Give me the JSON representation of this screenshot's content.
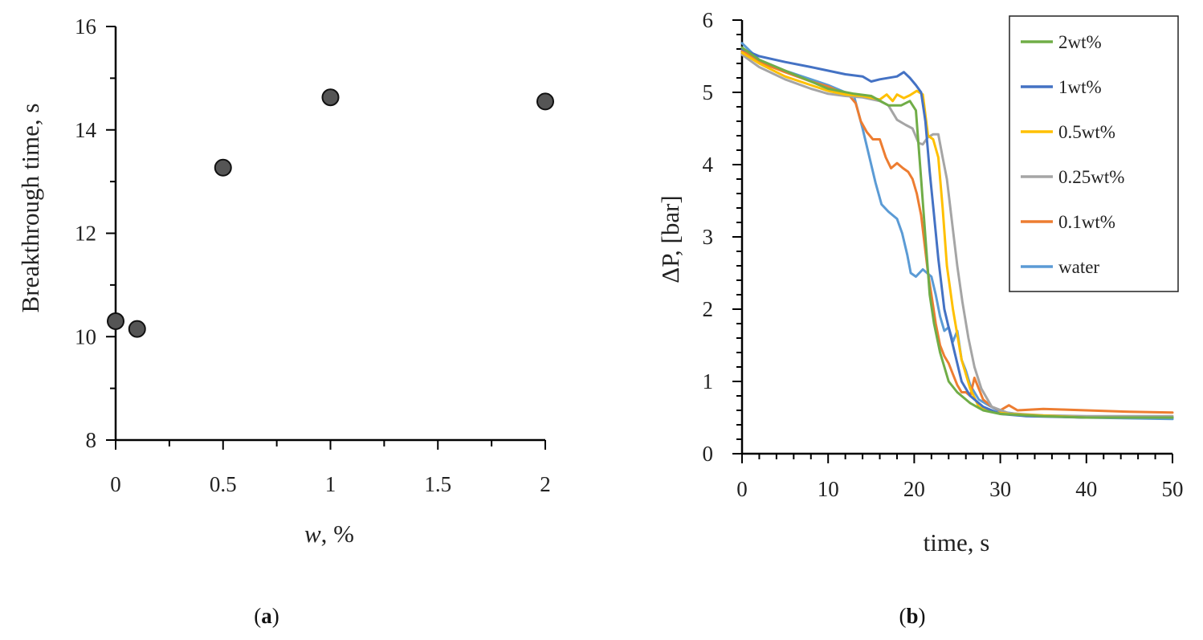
{
  "chart_data": [
    {
      "type": "scatter",
      "panel_label_open": "(",
      "panel_label_letter": "a",
      "panel_label_close": ")",
      "xlabel_var": "w",
      "xlabel_rest": ", %",
      "ylabel": "Breakthrough  time, s",
      "xlim": [
        0,
        2
      ],
      "ylim": [
        8,
        16
      ],
      "xticks": [
        0,
        0.5,
        1,
        1.5,
        2
      ],
      "xtick_labels": [
        "0",
        "0.5",
        "1",
        "1.5",
        "2"
      ],
      "yticks": [
        8,
        10,
        12,
        14,
        16
      ],
      "ytick_labels": [
        "8",
        "10",
        "12",
        "14",
        "16"
      ],
      "grid": false,
      "marker_color": "#555555",
      "points": [
        {
          "x": 0,
          "y": 10.3
        },
        {
          "x": 0.1,
          "y": 10.15
        },
        {
          "x": 0.5,
          "y": 13.27
        },
        {
          "x": 1,
          "y": 14.63
        },
        {
          "x": 2,
          "y": 14.55
        }
      ]
    },
    {
      "type": "line",
      "panel_label_open": "(",
      "panel_label_letter": "b",
      "panel_label_close": ")",
      "xlabel": "time, s",
      "ylabel": "ΔP, [bar]",
      "xlim": [
        0,
        50
      ],
      "ylim": [
        0,
        6
      ],
      "xticks": [
        0,
        10,
        20,
        30,
        40,
        50
      ],
      "xtick_labels": [
        "0",
        "10",
        "20",
        "30",
        "40",
        "50"
      ],
      "yticks": [
        0,
        1,
        2,
        3,
        4,
        5,
        6
      ],
      "ytick_labels": [
        "0",
        "1",
        "2",
        "3",
        "4",
        "5",
        "6"
      ],
      "grid": false,
      "legend_position": "top-right",
      "series": [
        {
          "name": "2wt%",
          "color": "#70AD47",
          "points": [
            [
              0,
              5.62
            ],
            [
              2,
              5.45
            ],
            [
              5,
              5.3
            ],
            [
              8,
              5.15
            ],
            [
              10,
              5.05
            ],
            [
              13,
              4.98
            ],
            [
              15,
              4.95
            ],
            [
              17,
              4.82
            ],
            [
              18.5,
              4.82
            ],
            [
              19.5,
              4.88
            ],
            [
              20.2,
              4.75
            ],
            [
              20.8,
              3.8
            ],
            [
              21.3,
              3.0
            ],
            [
              21.8,
              2.2
            ],
            [
              22.3,
              1.8
            ],
            [
              23,
              1.4
            ],
            [
              24,
              1.0
            ],
            [
              25,
              0.85
            ],
            [
              26.5,
              0.7
            ],
            [
              28,
              0.6
            ],
            [
              30,
              0.55
            ],
            [
              35,
              0.52
            ],
            [
              40,
              0.5
            ],
            [
              50,
              0.5
            ]
          ]
        },
        {
          "name": "1wt%",
          "color": "#4472C4",
          "points": [
            [
              0,
              5.6
            ],
            [
              2,
              5.5
            ],
            [
              5,
              5.42
            ],
            [
              8,
              5.35
            ],
            [
              10,
              5.3
            ],
            [
              12,
              5.25
            ],
            [
              14,
              5.22
            ],
            [
              15,
              5.15
            ],
            [
              16,
              5.18
            ],
            [
              18,
              5.22
            ],
            [
              18.8,
              5.28
            ],
            [
              19.5,
              5.2
            ],
            [
              20.2,
              5.1
            ],
            [
              20.8,
              5.0
            ],
            [
              21.3,
              4.6
            ],
            [
              21.8,
              3.9
            ],
            [
              22.3,
              3.3
            ],
            [
              22.8,
              2.7
            ],
            [
              23.5,
              2.0
            ],
            [
              24.5,
              1.5
            ],
            [
              25.5,
              1.0
            ],
            [
              26.5,
              0.8
            ],
            [
              28,
              0.65
            ],
            [
              30,
              0.55
            ],
            [
              33,
              0.52
            ],
            [
              40,
              0.5
            ],
            [
              50,
              0.5
            ]
          ]
        },
        {
          "name": "0.5wt%",
          "color": "#FFC000",
          "points": [
            [
              0,
              5.55
            ],
            [
              2,
              5.4
            ],
            [
              5,
              5.22
            ],
            [
              8,
              5.1
            ],
            [
              10,
              5.02
            ],
            [
              12,
              4.97
            ],
            [
              14,
              4.95
            ],
            [
              16,
              4.9
            ],
            [
              16.8,
              4.97
            ],
            [
              17.5,
              4.88
            ],
            [
              18,
              4.97
            ],
            [
              18.8,
              4.92
            ],
            [
              19.5,
              4.96
            ],
            [
              20.3,
              5.02
            ],
            [
              21,
              4.97
            ],
            [
              21.6,
              4.4
            ],
            [
              22.2,
              4.35
            ],
            [
              22.8,
              4.1
            ],
            [
              23.3,
              3.4
            ],
            [
              23.8,
              2.6
            ],
            [
              24.5,
              2.0
            ],
            [
              25.5,
              1.3
            ],
            [
              26.5,
              0.9
            ],
            [
              27.5,
              0.65
            ],
            [
              29,
              0.58
            ],
            [
              31,
              0.55
            ],
            [
              40,
              0.5
            ],
            [
              50,
              0.5
            ]
          ]
        },
        {
          "name": "0.25wt%",
          "color": "#A5A5A5",
          "points": [
            [
              0,
              5.52
            ],
            [
              2,
              5.35
            ],
            [
              5,
              5.18
            ],
            [
              8,
              5.05
            ],
            [
              10,
              4.98
            ],
            [
              12,
              4.95
            ],
            [
              14,
              4.93
            ],
            [
              16,
              4.88
            ],
            [
              17,
              4.82
            ],
            [
              18,
              4.62
            ],
            [
              19,
              4.55
            ],
            [
              19.8,
              4.5
            ],
            [
              20.5,
              4.3
            ],
            [
              21,
              4.28
            ],
            [
              21.6,
              4.38
            ],
            [
              22.2,
              4.42
            ],
            [
              22.8,
              4.42
            ],
            [
              23.3,
              4.1
            ],
            [
              23.8,
              3.8
            ],
            [
              24.5,
              3.1
            ],
            [
              25,
              2.6
            ],
            [
              25.6,
              2.1
            ],
            [
              26.3,
              1.6
            ],
            [
              27,
              1.2
            ],
            [
              27.8,
              0.9
            ],
            [
              29,
              0.65
            ],
            [
              31,
              0.56
            ],
            [
              35,
              0.53
            ],
            [
              40,
              0.52
            ],
            [
              50,
              0.52
            ]
          ]
        },
        {
          "name": "0.1wt%",
          "color": "#ED7D31",
          "points": [
            [
              0,
              5.58
            ],
            [
              2,
              5.42
            ],
            [
              5,
              5.28
            ],
            [
              8,
              5.15
            ],
            [
              10,
              5.08
            ],
            [
              11.5,
              5.0
            ],
            [
              12.5,
              4.95
            ],
            [
              13.2,
              4.85
            ],
            [
              13.8,
              4.6
            ],
            [
              14.5,
              4.45
            ],
            [
              15.2,
              4.35
            ],
            [
              16,
              4.35
            ],
            [
              16.7,
              4.1
            ],
            [
              17.3,
              3.95
            ],
            [
              18,
              4.02
            ],
            [
              18.7,
              3.95
            ],
            [
              19.3,
              3.9
            ],
            [
              19.8,
              3.8
            ],
            [
              20.3,
              3.6
            ],
            [
              20.8,
              3.3
            ],
            [
              21.2,
              2.9
            ],
            [
              21.6,
              2.5
            ],
            [
              22,
              2.2
            ],
            [
              22.5,
              1.8
            ],
            [
              23,
              1.5
            ],
            [
              23.5,
              1.35
            ],
            [
              24,
              1.25
            ],
            [
              24.5,
              1.1
            ],
            [
              25,
              0.95
            ],
            [
              25.5,
              0.85
            ],
            [
              26,
              0.85
            ],
            [
              26.5,
              0.8
            ],
            [
              27,
              1.05
            ],
            [
              27.5,
              0.9
            ],
            [
              28,
              0.75
            ],
            [
              29,
              0.65
            ],
            [
              30,
              0.6
            ],
            [
              31,
              0.67
            ],
            [
              32,
              0.6
            ],
            [
              35,
              0.62
            ],
            [
              40,
              0.6
            ],
            [
              45,
              0.58
            ],
            [
              50,
              0.57
            ]
          ]
        },
        {
          "name": "water",
          "color": "#5B9BD5",
          "points": [
            [
              0,
              5.68
            ],
            [
              2,
              5.45
            ],
            [
              5,
              5.3
            ],
            [
              8,
              5.18
            ],
            [
              10,
              5.1
            ],
            [
              11,
              5.05
            ],
            [
              12,
              5.0
            ],
            [
              13,
              4.95
            ],
            [
              14,
              4.5
            ],
            [
              14.8,
              4.1
            ],
            [
              15.5,
              3.75
            ],
            [
              16.2,
              3.45
            ],
            [
              17,
              3.35
            ],
            [
              18,
              3.25
            ],
            [
              18.6,
              3.05
            ],
            [
              19.2,
              2.75
            ],
            [
              19.6,
              2.5
            ],
            [
              20.2,
              2.45
            ],
            [
              21,
              2.55
            ],
            [
              22,
              2.45
            ],
            [
              22.5,
              2.2
            ],
            [
              23,
              1.9
            ],
            [
              23.5,
              1.7
            ],
            [
              24,
              1.75
            ],
            [
              24.5,
              1.55
            ],
            [
              25,
              1.7
            ],
            [
              25.5,
              1.3
            ],
            [
              26,
              1.15
            ],
            [
              26.5,
              0.95
            ],
            [
              27,
              0.85
            ],
            [
              27.5,
              0.75
            ],
            [
              28.5,
              0.68
            ],
            [
              30,
              0.58
            ],
            [
              32,
              0.55
            ],
            [
              35,
              0.52
            ],
            [
              40,
              0.5
            ],
            [
              50,
              0.48
            ]
          ]
        }
      ]
    }
  ]
}
